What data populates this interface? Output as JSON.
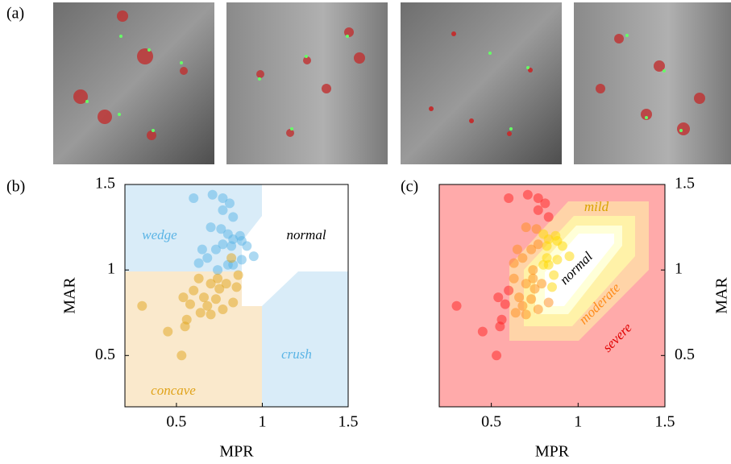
{
  "panel_label": "(a)",
  "chart_data": [
    {
      "type": "scatter",
      "panel_label": "(b)",
      "xlabel": "MPR",
      "ylabel": "MAR",
      "xlim": [
        0.2,
        1.5
      ],
      "ylim": [
        0.2,
        1.5
      ],
      "xticks": [
        0.5,
        1,
        1.5
      ],
      "yticks": [
        0.5,
        1,
        1.5
      ],
      "x": [
        0.6,
        0.71,
        0.77,
        0.81,
        0.77,
        0.83,
        0.7,
        0.76,
        0.8,
        0.87,
        0.83,
        0.88,
        0.77,
        0.82,
        0.91,
        0.65,
        0.73,
        0.95,
        0.68,
        0.88,
        0.63,
        0.83,
        0.74,
        0.8,
        0.82,
        0.74,
        0.86,
        0.63,
        0.7,
        0.79,
        0.85,
        0.6,
        0.75,
        0.54,
        0.66,
        0.73,
        0.83,
        0.58,
        0.68,
        0.77,
        0.64,
        0.7,
        0.3,
        0.56,
        0.45,
        0.55,
        0.53
      ],
      "y": [
        1.42,
        1.44,
        1.42,
        1.39,
        1.35,
        1.31,
        1.25,
        1.24,
        1.21,
        1.2,
        1.18,
        1.17,
        1.15,
        1.14,
        1.14,
        1.12,
        1.12,
        1.08,
        1.07,
        1.06,
        1.04,
        1.03,
        1.0,
        1.03,
        1.07,
        0.95,
        0.97,
        0.95,
        0.92,
        0.92,
        0.9,
        0.88,
        0.89,
        0.84,
        0.84,
        0.83,
        0.81,
        0.8,
        0.79,
        0.77,
        0.75,
        0.74,
        0.79,
        0.71,
        0.64,
        0.67,
        0.5
      ],
      "colors": [
        "#5ab4e5",
        "#5ab4e5",
        "#5ab4e5",
        "#5ab4e5",
        "#5ab4e5",
        "#5ab4e5",
        "#5ab4e5",
        "#5ab4e5",
        "#5ab4e5",
        "#5ab4e5",
        "#5ab4e5",
        "#5ab4e5",
        "#5ab4e5",
        "#5ab4e5",
        "#5ab4e5",
        "#5ab4e5",
        "#5ab4e5",
        "#5ab4e5",
        "#5ab4e5",
        "#5ab4e5",
        "#5ab4e5",
        "#5ab4e5",
        "#5ab4e5",
        "#5ab4e5",
        "#e0a31a",
        "#e0a31a",
        "#e0a31a",
        "#e0a31a",
        "#e0a31a",
        "#e0a31a",
        "#e0a31a",
        "#e0a31a",
        "#e0a31a",
        "#e0a31a",
        "#e0a31a",
        "#e0a31a",
        "#e0a31a",
        "#e0a31a",
        "#e0a31a",
        "#e0a31a",
        "#e0a31a",
        "#e0a31a",
        "#e0a31a",
        "#e0a31a",
        "#e0a31a",
        "#e0a31a",
        "#e0a31a"
      ],
      "annotations": [
        {
          "text": "wedge",
          "color": "#5ab4e5"
        },
        {
          "text": "normal",
          "color": "#000000"
        },
        {
          "text": "concave",
          "color": "#e0a31a"
        },
        {
          "text": "crush",
          "color": "#5ab4e5"
        }
      ]
    },
    {
      "type": "scatter",
      "panel_label": "(c)",
      "xlabel": "MPR",
      "ylabel": "MAR",
      "xlim": [
        0.2,
        1.5
      ],
      "ylim": [
        0.2,
        1.5
      ],
      "xticks": [
        0.5,
        1,
        1.5
      ],
      "yticks": [
        0.5,
        1,
        1.5
      ],
      "x": [
        0.6,
        0.71,
        0.77,
        0.81,
        0.77,
        0.83,
        0.7,
        0.76,
        0.8,
        0.87,
        0.83,
        0.88,
        0.77,
        0.82,
        0.91,
        0.65,
        0.73,
        0.95,
        0.68,
        0.88,
        0.63,
        0.83,
        0.74,
        0.8,
        0.82,
        0.74,
        0.86,
        0.63,
        0.7,
        0.79,
        0.85,
        0.6,
        0.75,
        0.54,
        0.66,
        0.73,
        0.83,
        0.58,
        0.68,
        0.77,
        0.64,
        0.7,
        0.3,
        0.56,
        0.45,
        0.55,
        0.53
      ],
      "y": [
        1.42,
        1.44,
        1.42,
        1.39,
        1.35,
        1.31,
        1.25,
        1.24,
        1.21,
        1.2,
        1.18,
        1.17,
        1.15,
        1.14,
        1.14,
        1.12,
        1.12,
        1.08,
        1.07,
        1.06,
        1.04,
        1.03,
        1.0,
        1.03,
        1.07,
        0.95,
        0.97,
        0.95,
        0.92,
        0.92,
        0.9,
        0.88,
        0.89,
        0.84,
        0.84,
        0.83,
        0.81,
        0.8,
        0.79,
        0.77,
        0.75,
        0.74,
        0.79,
        0.71,
        0.64,
        0.67,
        0.5
      ],
      "colors": [
        "#ff2020",
        "#ff2020",
        "#ff2020",
        "#ff2020",
        "#ff2020",
        "#ff2020",
        "#ff8c1a",
        "#ff8c1a",
        "#ffd700",
        "#ffd700",
        "#ffd700",
        "#ffd700",
        "#ff8c1a",
        "#ffd700",
        "#ffd700",
        "#ff8c1a",
        "#ff8c1a",
        "#ffd700",
        "#ff8c1a",
        "#ffd700",
        "#ff8c1a",
        "#ffd700",
        "#ff8c1a",
        "#ffd700",
        "#ffd700",
        "#ff8c1a",
        "#ffd700",
        "#ff8c1a",
        "#ff8c1a",
        "#ff8c1a",
        "#ffd700",
        "#ff2020",
        "#ff8c1a",
        "#ff2020",
        "#ff8c1a",
        "#ff8c1a",
        "#ff8c1a",
        "#ff2020",
        "#ff8c1a",
        "#ff8c1a",
        "#ff8c1a",
        "#ff8c1a",
        "#ff2020",
        "#ff2020",
        "#ff2020",
        "#ff2020",
        "#ff2020"
      ],
      "annotations": [
        {
          "text": "mild",
          "color": "#d9a300"
        },
        {
          "text": "normal",
          "color": "#000000"
        },
        {
          "text": "moderate",
          "color": "#ff8c1a"
        },
        {
          "text": "severe",
          "color": "#e00000"
        }
      ]
    }
  ]
}
